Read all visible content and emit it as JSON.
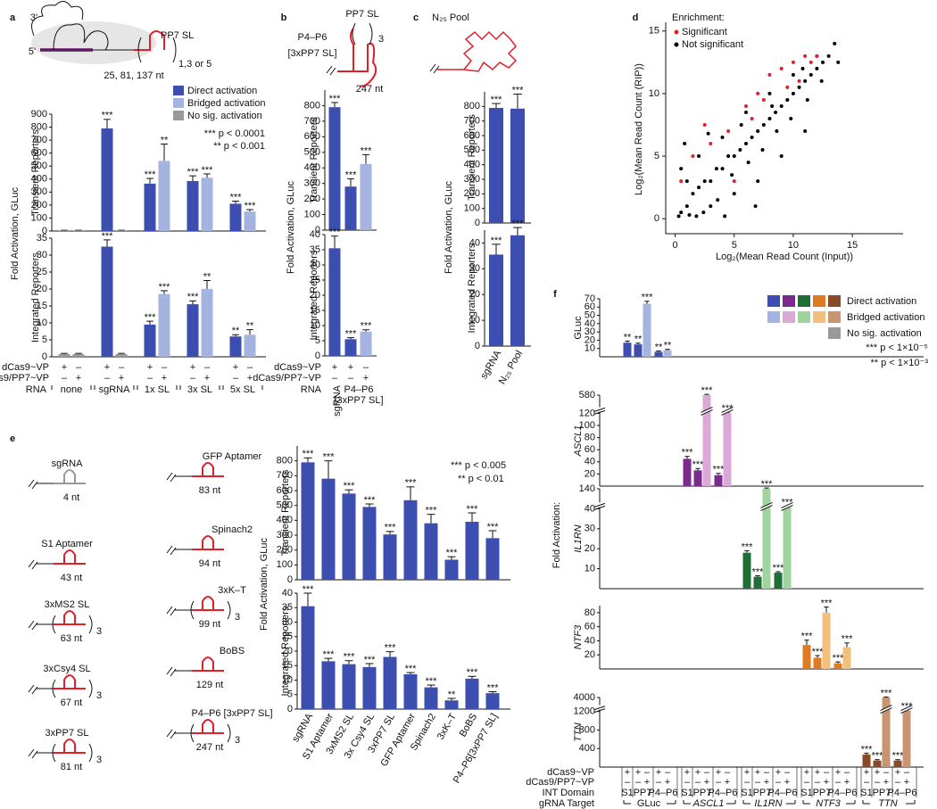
{
  "panel_labels": [
    "a",
    "b",
    "c",
    "d",
    "e",
    "f"
  ],
  "diagrams": {
    "a": {
      "three_prime": "3'",
      "five_prime": "5'",
      "name": "PP7 SL",
      "repeat": "1,3 or 5",
      "length": "25, 81, 137 nt"
    },
    "b": {
      "name": "PP7 SL",
      "domain": "P4–P6",
      "domain_sub": "[3xPP7 SL]",
      "repeat": "3",
      "length": "247 nt"
    },
    "c": {
      "name": "N₂₅ Pool"
    },
    "e": [
      {
        "name": "sgRNA",
        "length": "4 nt"
      },
      {
        "name": "S1 Aptamer",
        "length": "43 nt"
      },
      {
        "name": "3xMS2 SL",
        "length": "63 nt",
        "repeat": "3"
      },
      {
        "name": "3xCsy4 SL",
        "length": "67 nt",
        "repeat": "3"
      },
      {
        "name": "3xPP7 SL",
        "length": "81 nt",
        "repeat": "3"
      },
      {
        "name": "GFP Aptamer",
        "length": "83 nt"
      },
      {
        "name": "Spinach2",
        "length": "94 nt"
      },
      {
        "name": "3xK–T",
        "length": "99 nt",
        "repeat": "3"
      },
      {
        "name": "BoBS",
        "length": "129 nt"
      },
      {
        "name": "P4–P6 [3xPP7 SL]",
        "length": "247 nt",
        "repeat": "3"
      }
    ]
  },
  "legends": {
    "a": {
      "labels": [
        "Direct activation",
        "Bridged activation",
        "No sig. activation"
      ],
      "colors": [
        "#3c4fb1",
        "#a4b3df",
        "#999999"
      ],
      "pvalues": [
        "*** p < 0.0001",
        "** p < 0.001"
      ]
    },
    "d": {
      "title": "Enrichment:"
    },
    "e": {
      "pvalues": [
        "*** p < 0.005",
        "** p < 0.01"
      ]
    },
    "f": {
      "labels": [
        "Direct activation",
        "Bridged activation",
        "No sig. activation"
      ],
      "dark_colors": [
        "#3c4fb1",
        "#7b2a8e",
        "#1f6e36",
        "#e07b22",
        "#8a4a25"
      ],
      "light_colors": [
        "#a4b3df",
        "#dba9d8",
        "#9fd49c",
        "#f2bf7c",
        "#c99470"
      ],
      "grey": "#999999",
      "pvalues": [
        "*** p < 1×10⁻⁵",
        "** p < 1×10⁻³"
      ],
      "axis_title": "Fold Activation:"
    }
  },
  "tables": {
    "a": {
      "row_labels": [
        "dCas9~VP",
        "dCas9/PP7~VP",
        "RNA"
      ],
      "dcas9": [
        "+",
        "–",
        "+",
        "–",
        "+",
        "–",
        "+",
        "–",
        "+",
        "–"
      ],
      "pp7": [
        "–",
        "+",
        "–",
        "+",
        "–",
        "+",
        "–",
        "+",
        "–",
        "+"
      ],
      "rna": [
        "none",
        "sgRNA",
        "1x SL",
        "3x SL",
        "5x SL"
      ]
    },
    "b": {
      "row_labels": [
        "dCas9~VP",
        "dCas9/PP7~VP",
        "RNA"
      ],
      "dcas9": [
        "+",
        "+",
        "–"
      ],
      "pp7": [
        "–",
        "–",
        "+"
      ],
      "rna": [
        "sgRNA",
        "P4–P6",
        "[3xPP7 SL]"
      ]
    },
    "f": {
      "row_labels": [
        "dCas9~VP",
        "dCas9/PP7~VP",
        "INT Domain",
        "gRNA Target"
      ],
      "dcas9": [
        "+",
        "+",
        "–",
        "+",
        "–",
        "+",
        "+",
        "–",
        "+",
        "–",
        "+",
        "+",
        "–",
        "+",
        "–",
        "+",
        "+",
        "–",
        "+",
        "–",
        "+",
        "+",
        "–",
        "+",
        "–"
      ],
      "pp7": [
        "–",
        "–",
        "+",
        "–",
        "+",
        "–",
        "–",
        "+",
        "–",
        "+",
        "–",
        "–",
        "+",
        "–",
        "+",
        "–",
        "–",
        "+",
        "–",
        "+",
        "–",
        "–",
        "+",
        "–",
        "+"
      ],
      "int": [
        "S1",
        "PP7",
        "P4–P6",
        "S1",
        "PP7",
        "P4–P6",
        "S1",
        "PP7",
        "P4–P6",
        "S1",
        "PP7",
        "P4–P6",
        "S1",
        "PP7",
        "P4–P6"
      ],
      "target": [
        "GLuc",
        "ASCL1",
        "IL1RN",
        "NTF3",
        "TTN"
      ]
    }
  },
  "chart_data": [
    {
      "type": "bar",
      "panel": "a",
      "axis_title": "Fold Activation, GLuc",
      "ylabel": "Transient Reporters",
      "ylim": [
        0,
        900
      ],
      "yticks": [
        0,
        100,
        200,
        300,
        400,
        500,
        600,
        700,
        800,
        900
      ],
      "values": [
        5,
        5,
        790,
        5,
        365,
        540,
        385,
        410,
        210,
        150
      ],
      "errors": [
        1,
        1,
        70,
        1,
        40,
        130,
        40,
        30,
        20,
        15
      ],
      "colors": [
        "#999999",
        "#999999",
        "#3c4fb1",
        "#999999",
        "#3c4fb1",
        "#a4b3df",
        "#3c4fb1",
        "#a4b3df",
        "#3c4fb1",
        "#a4b3df"
      ],
      "significance": [
        null,
        null,
        "***",
        null,
        "***",
        "**",
        "***",
        "***",
        "***",
        "***"
      ]
    },
    {
      "type": "bar",
      "panel": "a",
      "ylabel": "Integrated Reporters",
      "ylim": [
        0,
        35
      ],
      "yticks": [
        0,
        5,
        10,
        15,
        20,
        25,
        30,
        35
      ],
      "values": [
        0.8,
        0.8,
        32.5,
        0.8,
        9.5,
        18.5,
        15.5,
        20,
        6,
        6.5
      ],
      "errors": [
        0.2,
        0.2,
        2,
        0.2,
        1,
        1,
        1,
        2.5,
        0.5,
        1.5
      ],
      "colors": [
        "#999999",
        "#999999",
        "#3c4fb1",
        "#999999",
        "#3c4fb1",
        "#a4b3df",
        "#3c4fb1",
        "#a4b3df",
        "#3c4fb1",
        "#a4b3df"
      ],
      "significance": [
        null,
        null,
        "***",
        null,
        "***",
        "***",
        "***",
        "**",
        "**",
        "**"
      ]
    },
    {
      "type": "bar",
      "panel": "b",
      "axis_title": "Fold Activation, GLuc",
      "ylabel": "Transient Reporters",
      "ylim": [
        0,
        900
      ],
      "yticks": [
        0,
        100,
        200,
        300,
        400,
        500,
        600,
        700,
        800
      ],
      "values": [
        790,
        280,
        425
      ],
      "errors": [
        30,
        50,
        60
      ],
      "colors": [
        "#3c4fb1",
        "#3c4fb1",
        "#a4b3df"
      ],
      "significance": [
        "***",
        "***",
        "***"
      ]
    },
    {
      "type": "bar",
      "panel": "b",
      "ylabel": "Integrated Reporters",
      "ylim": [
        0,
        40
      ],
      "yticks": [
        0,
        5,
        10,
        15,
        20,
        25,
        30,
        35,
        40
      ],
      "values": [
        35.5,
        5.5,
        8
      ],
      "errors": [
        4,
        0.5,
        0.6
      ],
      "colors": [
        "#3c4fb1",
        "#3c4fb1",
        "#a4b3df"
      ],
      "significance": [
        "***",
        "***",
        "***"
      ]
    },
    {
      "type": "bar",
      "panel": "c",
      "axis_title": "Fold Activation, GLuc",
      "ylabel": "Transient Reporters",
      "ylim": [
        0,
        900
      ],
      "yticks": [
        0,
        100,
        200,
        300,
        400,
        500,
        600,
        700,
        800
      ],
      "values": [
        790,
        785
      ],
      "errors": [
        30,
        100
      ],
      "colors": [
        "#3c4fb1",
        "#3c4fb1"
      ],
      "significance": [
        "***",
        "***"
      ]
    },
    {
      "type": "bar",
      "panel": "c",
      "ylabel": "Integrated Reporters",
      "ylim": [
        0,
        45
      ],
      "yticks": [
        0,
        10,
        20,
        30,
        40
      ],
      "values": [
        35.5,
        43
      ],
      "errors": [
        4,
        3
      ],
      "colors": [
        "#3c4fb1",
        "#3c4fb1"
      ],
      "significance": [
        "***",
        "***"
      ],
      "categories": [
        "sgRNA",
        "N₂₅ Pool"
      ]
    },
    {
      "type": "scatter",
      "panel": "d",
      "xlabel": "Log₂(Mean Read Count (Input))",
      "ylabel": "Log₂(Mean Read Count (RIP))",
      "xlim": [
        -0.8,
        19.3
      ],
      "ylim": [
        -1.2,
        15.7
      ],
      "xticks": [
        0,
        5,
        10,
        15
      ],
      "yticks": [
        0,
        5,
        10,
        15
      ],
      "series": [
        {
          "name": "Not significant",
          "color": "#000000",
          "x": [
            0.5,
            1,
            1.5,
            2,
            2.5,
            3,
            3.5,
            4,
            4.5,
            5,
            5.5,
            6,
            6.5,
            7,
            7.5,
            8,
            8.5,
            9,
            9.5,
            10,
            10.5,
            11,
            11.5,
            12,
            12.5,
            13,
            0.5,
            2,
            4,
            6,
            8,
            10,
            12,
            3,
            5,
            7,
            9,
            11,
            13.5,
            1,
            0.3,
            1.2,
            2.4,
            3.6,
            4.8,
            6.2,
            7.4,
            8.6,
            9.8,
            11.2,
            12.4,
            13.8,
            0.8,
            2.8,
            5.6,
            8.2,
            10.8,
            1.8,
            4.2,
            6.8
          ],
          "y": [
            0.5,
            1,
            2,
            2.5,
            3,
            3,
            4,
            4,
            5,
            5,
            5.5,
            6,
            6.5,
            7,
            7.5,
            8,
            8.5,
            9,
            9.5,
            10,
            10.5,
            11,
            11.5,
            12,
            12.5,
            13,
            4,
            5,
            6.5,
            8.5,
            10,
            11.5,
            13,
            1,
            2,
            3,
            5,
            7,
            14,
            3,
            0.2,
            0.3,
            0.5,
            1.5,
            3.5,
            4.5,
            5.5,
            7,
            8,
            9.5,
            11,
            12.5,
            6,
            6.8,
            7.5,
            9,
            12,
            0.2,
            0.2,
            1
          ]
        },
        {
          "name": "Significant",
          "color": "#e0202a",
          "x": [
            0.5,
            1.5,
            3,
            4.5,
            6,
            7,
            8,
            9,
            10,
            11,
            12,
            6.5,
            9.5,
            11.5,
            5,
            2.5,
            7.5,
            10.5
          ],
          "y": [
            3,
            5,
            6,
            7,
            9,
            10,
            11.5,
            12,
            12.5,
            13,
            13,
            8,
            10.5,
            12.5,
            3,
            7.5,
            9.5,
            11
          ]
        }
      ]
    },
    {
      "type": "bar",
      "panel": "e",
      "axis_title": "Fold Activation, GLuc",
      "ylabel": "Transient Reporters",
      "ylim": [
        0,
        900
      ],
      "yticks": [
        0,
        100,
        200,
        300,
        400,
        500,
        600,
        700,
        800
      ],
      "values": [
        790,
        680,
        580,
        490,
        305,
        535,
        380,
        135,
        390,
        280
      ],
      "errors": [
        30,
        120,
        25,
        20,
        20,
        90,
        60,
        20,
        60,
        50
      ],
      "colors": [
        "#3c4fb1",
        "#3c4fb1",
        "#3c4fb1",
        "#3c4fb1",
        "#3c4fb1",
        "#3c4fb1",
        "#3c4fb1",
        "#3c4fb1",
        "#3c4fb1",
        "#3c4fb1"
      ],
      "significance": [
        "***",
        "***",
        "***",
        "***",
        "***",
        "***",
        "***",
        "***",
        "***",
        "***"
      ]
    },
    {
      "type": "bar",
      "panel": "e",
      "ylabel": "Integrated Reporters",
      "ylim": [
        0,
        40
      ],
      "yticks": [
        0,
        5,
        10,
        15,
        20,
        25,
        30,
        35,
        40
      ],
      "values": [
        35.5,
        16.5,
        15.5,
        14.5,
        18,
        12,
        7.5,
        3,
        10.5,
        5.5
      ],
      "errors": [
        4.5,
        1,
        1.2,
        1.2,
        1.8,
        0.6,
        0.8,
        0.7,
        0.8,
        0.5
      ],
      "colors": [
        "#3c4fb1",
        "#3c4fb1",
        "#3c4fb1",
        "#3c4fb1",
        "#3c4fb1",
        "#3c4fb1",
        "#3c4fb1",
        "#3c4fb1",
        "#3c4fb1",
        "#3c4fb1"
      ],
      "significance": [
        "***",
        "***",
        "***",
        "***",
        "***",
        "***",
        "***",
        "**",
        "***",
        "***"
      ],
      "categories": [
        "sgRNA",
        "S1 Aptamer",
        "3xMS2 SL",
        "3x Csy4 SL",
        "3xPP7 SL",
        "GFP Aptamer",
        "Spinach2",
        "3xK–T",
        "BoBS",
        "P4–P6[3xPP7 SL]"
      ]
    },
    {
      "type": "bar",
      "panel": "f",
      "ylabel": "GLuc",
      "ylim": [
        0,
        70
      ],
      "yticks": [
        10,
        20,
        30,
        40,
        50,
        60,
        70
      ],
      "values": [
        17,
        15,
        64,
        6,
        8
      ],
      "errors": [
        2,
        1.5,
        3,
        1,
        1
      ],
      "colors": [
        "#3c4fb1",
        "#3c4fb1",
        "#a4b3df",
        "#3c4fb1",
        "#a4b3df"
      ],
      "significance": [
        "**",
        "**",
        "***",
        "**",
        "**"
      ]
    },
    {
      "type": "bar",
      "panel": "f",
      "ylabel": "ASCL1",
      "broken_axis": true,
      "ylim": [
        0,
        580
      ],
      "yticks": [
        20,
        40,
        60,
        80,
        100,
        120,
        580
      ],
      "values": [
        45,
        26,
        580,
        18,
        135
      ],
      "errors": [
        4,
        3,
        20,
        3,
        10
      ],
      "colors": [
        "#7b2a8e",
        "#7b2a8e",
        "#dba9d8",
        "#7b2a8e",
        "#dba9d8"
      ],
      "significance": [
        "***",
        "***",
        "***",
        "***",
        "***"
      ]
    },
    {
      "type": "bar",
      "panel": "f",
      "ylabel": "IL1RN",
      "broken_axis": true,
      "ylim": [
        0,
        140
      ],
      "yticks": [
        10,
        20,
        30,
        40,
        140
      ],
      "values": [
        18,
        6,
        140,
        8,
        48
      ],
      "errors": [
        1,
        0.5,
        4,
        0.5,
        5
      ],
      "colors": [
        "#1f6e36",
        "#1f6e36",
        "#9fd49c",
        "#1f6e36",
        "#9fd49c"
      ],
      "significance": [
        "***",
        "***",
        "***",
        "***",
        "***"
      ]
    },
    {
      "type": "bar",
      "panel": "f",
      "ylabel": "NTF3",
      "ylim": [
        0,
        90
      ],
      "yticks": [
        20,
        40,
        60,
        80
      ],
      "values": [
        34,
        16,
        80,
        8,
        31
      ],
      "errors": [
        7,
        3,
        8,
        2,
        6
      ],
      "colors": [
        "#e07b22",
        "#e07b22",
        "#f2bf7c",
        "#e07b22",
        "#f2bf7c"
      ],
      "significance": [
        "***",
        "***",
        "***",
        "***",
        "***"
      ]
    },
    {
      "type": "bar",
      "panel": "f",
      "ylabel": "TTN",
      "broken_axis": true,
      "ylim": [
        0,
        4000
      ],
      "yticks": [
        400,
        800,
        1200,
        4000
      ],
      "values": [
        270,
        140,
        4000,
        140,
        1350
      ],
      "errors": [
        30,
        20,
        100,
        20,
        150
      ],
      "colors": [
        "#8a4a25",
        "#8a4a25",
        "#c99470",
        "#8a4a25",
        "#c99470"
      ],
      "significance": [
        "***",
        "***",
        "***",
        "***",
        "***"
      ]
    }
  ]
}
